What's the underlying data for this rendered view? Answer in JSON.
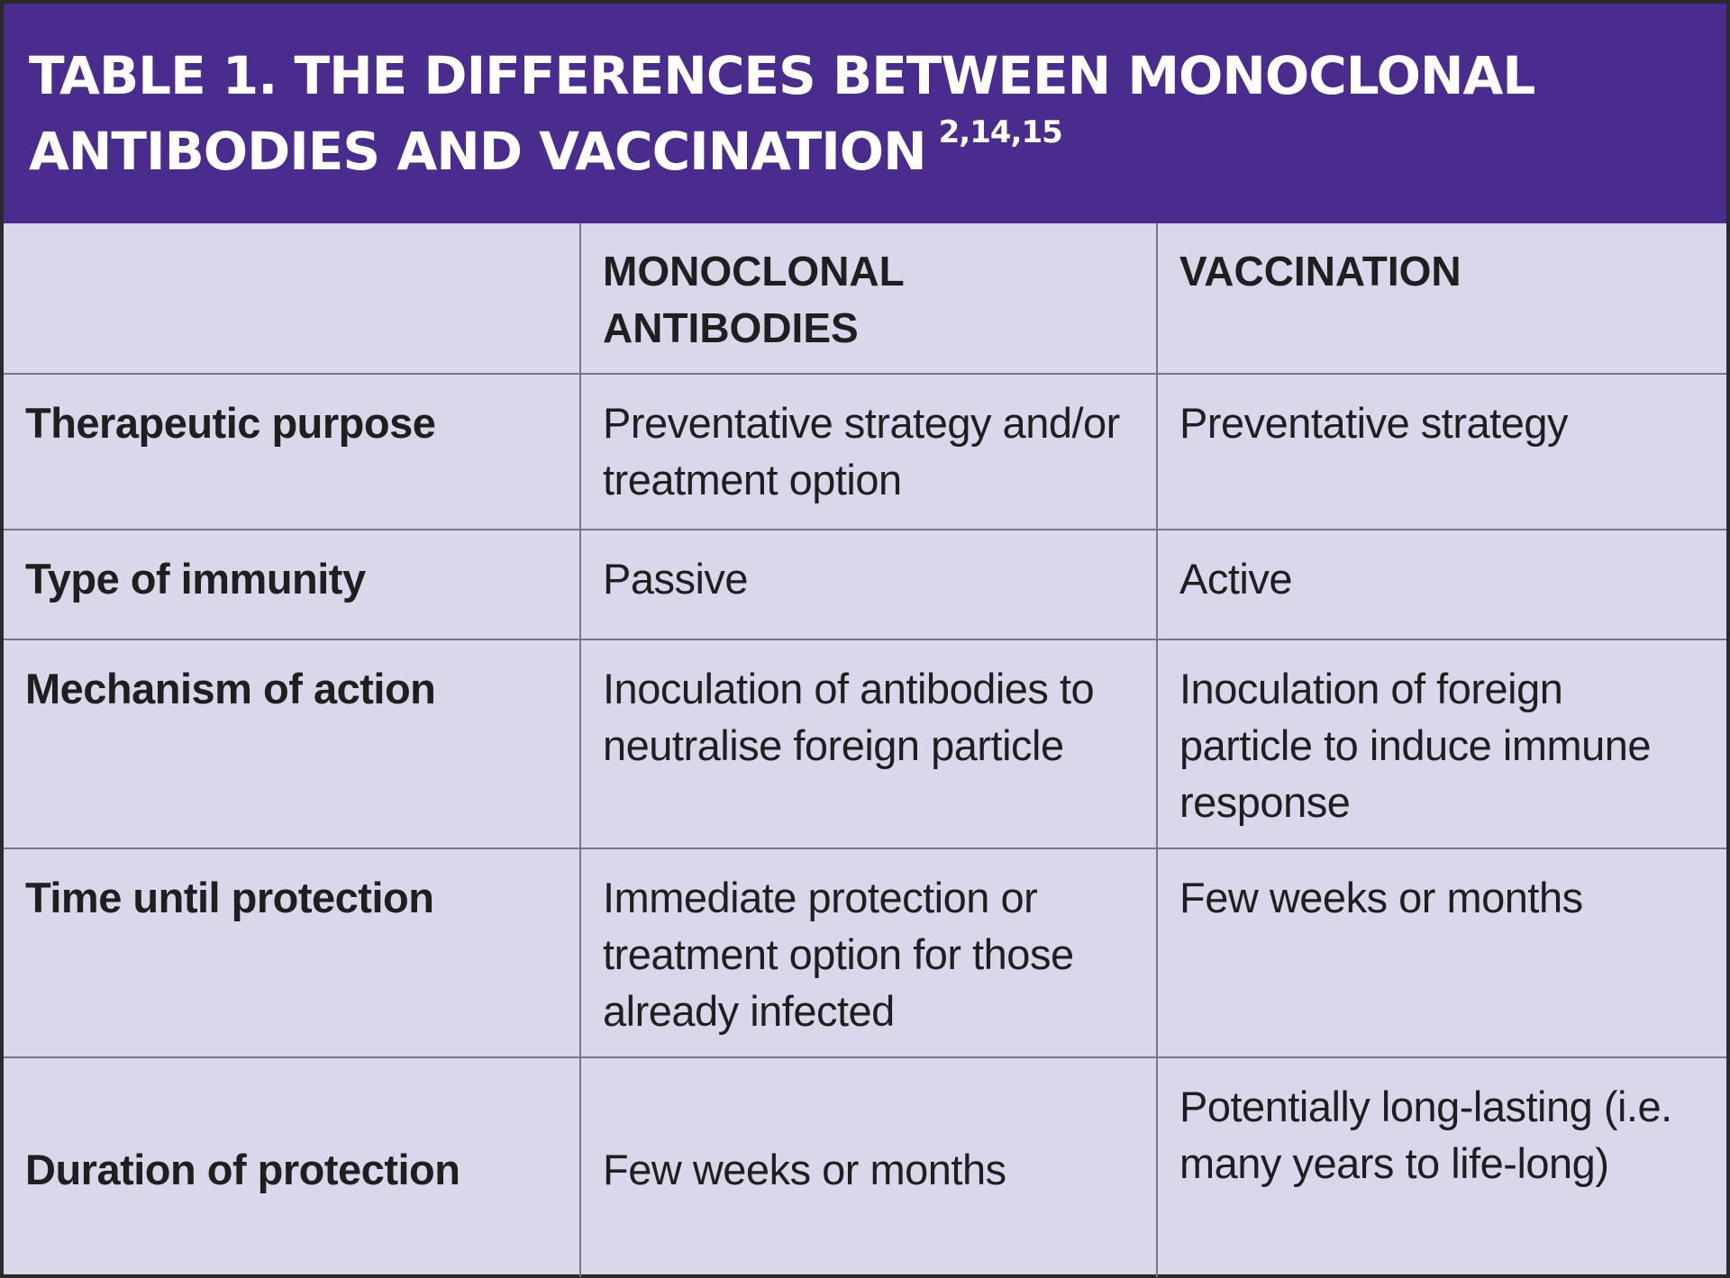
{
  "table": {
    "title_line1": "TABLE 1. THE DIFFERENCES BETWEEN MONOCLONAL",
    "title_line2": "ANTIBODIES AND VACCINATION",
    "title_refs": "2,14,15",
    "header_blank": "",
    "header_col1": "MONOCLONAL ANTIBODIES",
    "header_col2": "VACCINATION",
    "rows": [
      {
        "label": "Therapeutic purpose",
        "monoclonal": "Preventative strategy and/or treatment option",
        "vaccination": "Preventative strategy"
      },
      {
        "label": "Type of immunity",
        "monoclonal": "Passive",
        "vaccination": "Active"
      },
      {
        "label": "Mechanism of action",
        "monoclonal": "Inoculation of antibodies to neutralise foreign particle",
        "vaccination": "Inoculation of foreign particle to induce immune response"
      },
      {
        "label": "Time until protection",
        "monoclonal": "Immediate protection or treatment option for those already infected",
        "vaccination": "Few weeks or months"
      },
      {
        "label": "Duration of protection",
        "monoclonal": "Few weeks or months",
        "vaccination": "Potentially long-lasting (i.e. many years to life-long)"
      }
    ]
  },
  "colors": {
    "title_background": "#4a2c8f",
    "table_background": "#dcd6ea",
    "grid_lines": "#7a7488",
    "text": "#1f1f1f"
  }
}
